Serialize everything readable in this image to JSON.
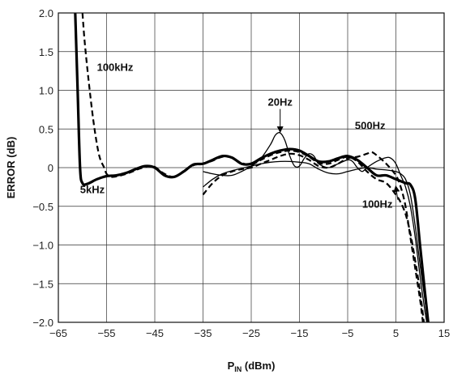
{
  "chart_data": {
    "type": "line",
    "xlabel_main": "P",
    "xlabel_sub": "IN",
    "xlabel_unit": " (dBm)",
    "ylabel": "ERROR (dB)",
    "xlim": [
      -65,
      15
    ],
    "ylim": [
      -2.0,
      2.0
    ],
    "x_ticks": [
      -65,
      -55,
      -45,
      -35,
      -25,
      -15,
      -5,
      5,
      15
    ],
    "x_tick_labels": [
      "−65",
      "−55",
      "−45",
      "−35",
      "−25",
      "−15",
      "−5",
      "5",
      "15"
    ],
    "y_ticks": [
      2.0,
      1.5,
      1.0,
      0.5,
      0,
      -0.5,
      -1.0,
      -1.5,
      -2.0
    ],
    "y_tick_labels": [
      "2.0",
      "1.5",
      "1.0",
      "0.5",
      "0",
      "−0.5",
      "−1.0",
      "−1.5",
      "−2.0"
    ],
    "grid": true,
    "series": [
      {
        "name": "5kHz",
        "style": "thick-solid",
        "points": [
          [
            -61.5,
            2.0
          ],
          [
            -61,
            1.0
          ],
          [
            -60.5,
            0.0
          ],
          [
            -60,
            -0.2
          ],
          [
            -59,
            -0.21
          ],
          [
            -57,
            -0.15
          ],
          [
            -55,
            -0.11
          ],
          [
            -53,
            -0.1
          ],
          [
            -51,
            -0.07
          ],
          [
            -49,
            -0.02
          ],
          [
            -47,
            0.02
          ],
          [
            -45,
            0.0
          ],
          [
            -43,
            -0.1
          ],
          [
            -41,
            -0.12
          ],
          [
            -39,
            -0.05
          ],
          [
            -37,
            0.04
          ],
          [
            -35,
            0.05
          ],
          [
            -33,
            0.1
          ],
          [
            -31,
            0.15
          ],
          [
            -29,
            0.13
          ],
          [
            -27,
            0.05
          ],
          [
            -25,
            0.05
          ],
          [
            -23,
            0.12
          ],
          [
            -21,
            0.18
          ],
          [
            -19,
            0.22
          ],
          [
            -17,
            0.24
          ],
          [
            -15,
            0.22
          ],
          [
            -13,
            0.15
          ],
          [
            -11,
            0.08
          ],
          [
            -9,
            0.08
          ],
          [
            -7,
            0.12
          ],
          [
            -5,
            0.15
          ],
          [
            -3,
            0.1
          ],
          [
            -1,
            0.0
          ],
          [
            1,
            -0.1
          ],
          [
            3,
            -0.1
          ],
          [
            5,
            -0.15
          ],
          [
            7,
            -0.2
          ],
          [
            8,
            -0.22
          ],
          [
            9,
            -0.4
          ],
          [
            10,
            -1.0
          ],
          [
            11,
            -1.6
          ],
          [
            11.7,
            -2.0
          ]
        ]
      },
      {
        "name": "100kHz",
        "style": "dashed",
        "points": [
          [
            -60,
            2.0
          ],
          [
            -59.5,
            1.6
          ],
          [
            -58.5,
            1.0
          ],
          [
            -57.5,
            0.5
          ],
          [
            -56.5,
            0.15
          ],
          [
            -55.5,
            0.0
          ],
          [
            -55,
            -0.08
          ],
          [
            -54,
            -0.12
          ],
          [
            -52,
            -0.1
          ],
          [
            -50,
            -0.06
          ],
          [
            -48,
            -0.01
          ],
          [
            -46,
            0.02
          ],
          [
            -45,
            0.01
          ],
          [
            -43,
            -0.08
          ],
          [
            -41,
            -0.12
          ],
          [
            -39,
            -0.05
          ],
          [
            -37,
            0.03
          ],
          [
            -35,
            0.05
          ],
          [
            -33,
            0.09
          ],
          [
            -31,
            0.14
          ],
          [
            -29,
            0.13
          ],
          [
            -27,
            0.06
          ],
          [
            -25,
            0.04
          ],
          [
            -23,
            0.1
          ],
          [
            -21,
            0.16
          ],
          [
            -19,
            0.2
          ],
          [
            -17,
            0.22
          ],
          [
            -15,
            0.2
          ],
          [
            -13,
            0.14
          ],
          [
            -11,
            0.06
          ],
          [
            -9,
            0.05
          ],
          [
            -7,
            0.1
          ],
          [
            -5,
            0.14
          ],
          [
            -3,
            0.08
          ],
          [
            -1,
            -0.05
          ],
          [
            1,
            -0.15
          ],
          [
            3,
            -0.2
          ],
          [
            5,
            -0.35
          ],
          [
            6,
            -0.45
          ],
          [
            7,
            -0.6
          ],
          [
            8,
            -0.85
          ],
          [
            9,
            -1.2
          ],
          [
            10,
            -1.6
          ],
          [
            10.8,
            -2.0
          ]
        ]
      },
      {
        "name": "20Hz",
        "style": "thin-solid",
        "points": [
          [
            -35,
            -0.05
          ],
          [
            -33,
            -0.08
          ],
          [
            -31,
            -0.1
          ],
          [
            -29,
            -0.1
          ],
          [
            -27,
            -0.05
          ],
          [
            -25,
            0.02
          ],
          [
            -23,
            0.12
          ],
          [
            -21,
            0.3
          ],
          [
            -20,
            0.42
          ],
          [
            -19,
            0.45
          ],
          [
            -18,
            0.35
          ],
          [
            -17,
            0.15
          ],
          [
            -16,
            0.02
          ],
          [
            -15,
            0.02
          ],
          [
            -14,
            0.12
          ],
          [
            -13,
            0.18
          ],
          [
            -12,
            0.15
          ],
          [
            -11,
            0.05
          ],
          [
            -9,
            0.0
          ],
          [
            -7,
            0.05
          ],
          [
            -5,
            0.1
          ],
          [
            -4,
            0.08
          ],
          [
            -3,
            0.0
          ],
          [
            -2,
            -0.05
          ],
          [
            -1,
            0.0
          ],
          [
            1,
            0.08
          ],
          [
            3,
            0.13
          ],
          [
            4,
            0.12
          ],
          [
            5,
            0.05
          ],
          [
            6,
            -0.1
          ],
          [
            7,
            -0.25
          ],
          [
            8,
            -0.5
          ],
          [
            9,
            -0.9
          ],
          [
            10,
            -1.4
          ],
          [
            11,
            -1.85
          ],
          [
            11.4,
            -2.0
          ]
        ]
      },
      {
        "name": "500Hz",
        "style": "dashed",
        "points": [
          [
            -35,
            -0.35
          ],
          [
            -33,
            -0.2
          ],
          [
            -31,
            -0.1
          ],
          [
            -29,
            -0.05
          ],
          [
            -27,
            -0.02
          ],
          [
            -25,
            0.0
          ],
          [
            -23,
            0.05
          ],
          [
            -21,
            0.1
          ],
          [
            -19,
            0.15
          ],
          [
            -17,
            0.18
          ],
          [
            -15,
            0.16
          ],
          [
            -13,
            0.1
          ],
          [
            -11,
            0.02
          ],
          [
            -9,
            0.0
          ],
          [
            -7,
            0.05
          ],
          [
            -5,
            0.12
          ],
          [
            -3,
            0.14
          ],
          [
            -1,
            0.18
          ],
          [
            0,
            0.2
          ],
          [
            1,
            0.16
          ],
          [
            3,
            0.05
          ],
          [
            5,
            -0.1
          ],
          [
            6,
            -0.25
          ],
          [
            7,
            -0.5
          ],
          [
            8,
            -0.9
          ],
          [
            9,
            -1.3
          ],
          [
            10,
            -1.7
          ],
          [
            10.6,
            -2.0
          ]
        ]
      },
      {
        "name": "100Hz",
        "style": "thin-solid",
        "points": [
          [
            -35,
            -0.25
          ],
          [
            -33,
            -0.15
          ],
          [
            -31,
            -0.08
          ],
          [
            -29,
            -0.04
          ],
          [
            -27,
            -0.01
          ],
          [
            -25,
            0.02
          ],
          [
            -23,
            0.05
          ],
          [
            -21,
            0.07
          ],
          [
            -19,
            0.08
          ],
          [
            -17,
            0.08
          ],
          [
            -15,
            0.07
          ],
          [
            -13,
            0.05
          ],
          [
            -11,
            -0.02
          ],
          [
            -9,
            -0.07
          ],
          [
            -7,
            -0.08
          ],
          [
            -5,
            -0.05
          ],
          [
            -3,
            -0.02
          ],
          [
            -1,
            0.0
          ],
          [
            1,
            -0.02
          ],
          [
            3,
            -0.03
          ],
          [
            5,
            -0.05
          ],
          [
            6,
            -0.08
          ],
          [
            7,
            -0.15
          ],
          [
            8,
            -0.35
          ],
          [
            9,
            -0.75
          ],
          [
            10,
            -1.25
          ],
          [
            11,
            -1.7
          ],
          [
            11.6,
            -2.0
          ]
        ]
      }
    ],
    "annotations": [
      {
        "label": "100kHz",
        "series": "100kHz",
        "at": [
          -57,
          1.25
        ]
      },
      {
        "label": "5kHz",
        "series": "5kHz",
        "at": [
          -60.5,
          -0.33
        ]
      },
      {
        "label": "20Hz",
        "series": "20Hz",
        "at": [
          -19,
          0.8
        ],
        "arrow_to": [
          -19,
          0.47
        ]
      },
      {
        "label": "500Hz",
        "series": "500Hz",
        "at": [
          -3.5,
          0.5
        ]
      },
      {
        "label": "100Hz",
        "series": "100Hz",
        "at": [
          -2,
          -0.52
        ],
        "arrow_to": [
          5,
          -0.25
        ]
      }
    ]
  }
}
